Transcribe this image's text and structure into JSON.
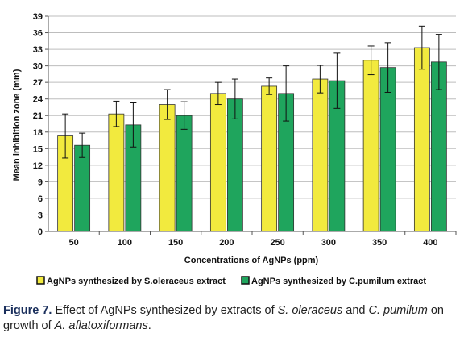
{
  "chart_data": {
    "type": "bar",
    "title": "",
    "xlabel": "Concentrations of AgNPs (ppm)",
    "ylabel": "Mean inhibition zone (mm)",
    "ylim": [
      0,
      39
    ],
    "yticks": [
      0,
      3,
      6,
      9,
      12,
      15,
      18,
      21,
      24,
      27,
      30,
      33,
      36,
      39
    ],
    "grid": "horizontal",
    "legend_position": "bottom",
    "categories": [
      "50",
      "100",
      "150",
      "200",
      "250",
      "300",
      "350",
      "400"
    ],
    "series": [
      {
        "name": "AgNPs synthesized by S.oleraceus extract",
        "color": "#f2ea3e",
        "values": [
          17.3,
          21.3,
          23.0,
          25.0,
          26.3,
          27.6,
          31.0,
          33.3
        ],
        "error": [
          4.0,
          2.3,
          2.7,
          2.0,
          1.5,
          2.5,
          2.6,
          3.9
        ]
      },
      {
        "name": "AgNPs synthesized by C.pumilum  extract",
        "color": "#1fa55d",
        "values": [
          15.6,
          19.3,
          21.0,
          24.0,
          25.0,
          27.3,
          29.7,
          30.7
        ],
        "error": [
          2.2,
          4.0,
          2.5,
          3.6,
          5.0,
          5.0,
          4.5,
          5.0
        ]
      }
    ]
  },
  "caption": {
    "label": "Figure 7.",
    "text_1": " Effect of AgNPs synthesized by extracts of ",
    "species_1": "S. oleraceus",
    "text_2": " and ",
    "species_2": "C. pumilum",
    "text_3": " on growth of ",
    "species_3": "A. aflatoxiformans",
    "text_4": "."
  }
}
